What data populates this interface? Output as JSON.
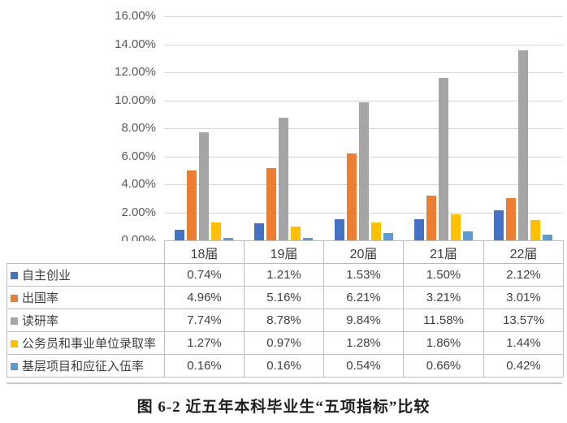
{
  "figure": {
    "caption": "图 6-2 近五年本科毕业生“五项指标”比较"
  },
  "chart_data": {
    "type": "bar",
    "title": "",
    "categories": [
      "18届",
      "19届",
      "20届",
      "21届",
      "22届"
    ],
    "series": [
      {
        "name": "自主创业",
        "color": "#4472C4",
        "values": [
          0.74,
          1.21,
          1.53,
          1.5,
          2.12
        ]
      },
      {
        "name": "出国率",
        "color": "#ED7D31",
        "values": [
          4.96,
          5.16,
          6.21,
          3.21,
          3.01
        ]
      },
      {
        "name": "读研率",
        "color": "#A5A5A5",
        "values": [
          7.74,
          8.78,
          9.84,
          11.58,
          13.57
        ]
      },
      {
        "name": "公务员和事业单位录取率",
        "color": "#FFC000",
        "values": [
          1.27,
          0.97,
          1.28,
          1.86,
          1.44
        ]
      },
      {
        "name": "基层项目和应征入伍率",
        "color": "#5B9BD5",
        "values": [
          0.16,
          0.16,
          0.54,
          0.66,
          0.42
        ]
      }
    ],
    "value_suffix": "%",
    "value_decimals": 2,
    "ylim": [
      0,
      16
    ],
    "ytick_step": 2,
    "ytick_labels": [
      "16.00%",
      "14.00%",
      "12.00%",
      "10.00%",
      "8.00%",
      "6.00%",
      "4.00%",
      "2.00%",
      "0.00%"
    ],
    "grid": true,
    "grid_color": "#d6d6d6",
    "border_color": "#bfbfbf",
    "legend_position": "table-rows-left"
  }
}
